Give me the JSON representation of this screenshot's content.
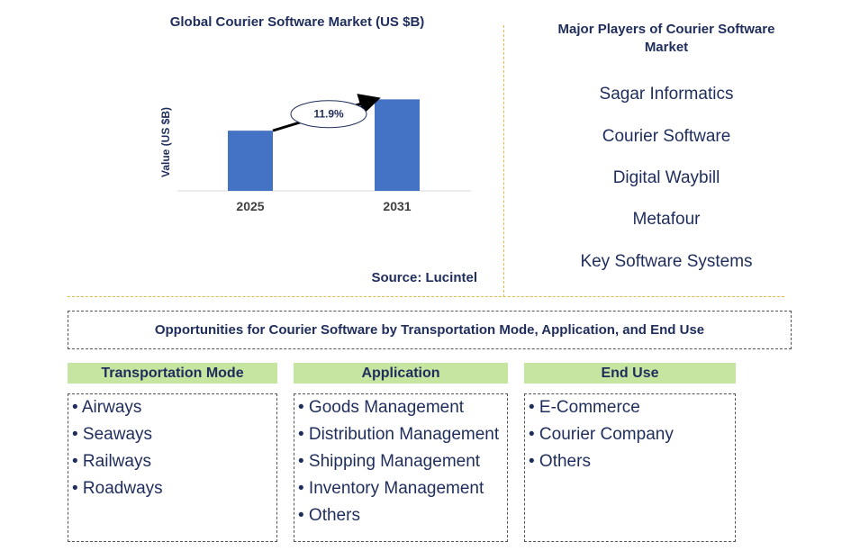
{
  "chart_data": {
    "type": "bar",
    "title": "Global Courier Software Market (US $B)",
    "ylabel": "Value (US $B)",
    "xlabel": "",
    "categories": [
      "2025",
      "2031"
    ],
    "values": [
      1.0,
      1.52
    ],
    "ylim": [
      0,
      1.6
    ],
    "annotation": "11.9%",
    "bar_color": "#4472c4",
    "grid": false,
    "source": "Source: Lucintel"
  },
  "players": {
    "title_line1": "Major Players of Courier Software",
    "title_line2": "Market",
    "items": [
      "Sagar Informatics",
      "Courier Software",
      "Digital Waybill",
      "Metafour",
      "Key Software Systems"
    ]
  },
  "opportunities": {
    "title": "Opportunities for Courier Software by Transportation Mode, Application, and End Use",
    "columns": [
      {
        "header": "Transportation Mode",
        "items": [
          "Airways",
          "Seaways",
          "Railways",
          "Roadways"
        ]
      },
      {
        "header": "Application",
        "items": [
          "Goods Management",
          "Distribution Management",
          "Shipping Management",
          "Inventory Management",
          "Others"
        ]
      },
      {
        "header": "End Use",
        "items": [
          "E-Commerce",
          "Courier Company",
          "Others"
        ]
      }
    ]
  },
  "colors": {
    "title_text": "#1f2d5c",
    "header_bg": "#c6e5a1",
    "divider": "#e9b64c"
  }
}
